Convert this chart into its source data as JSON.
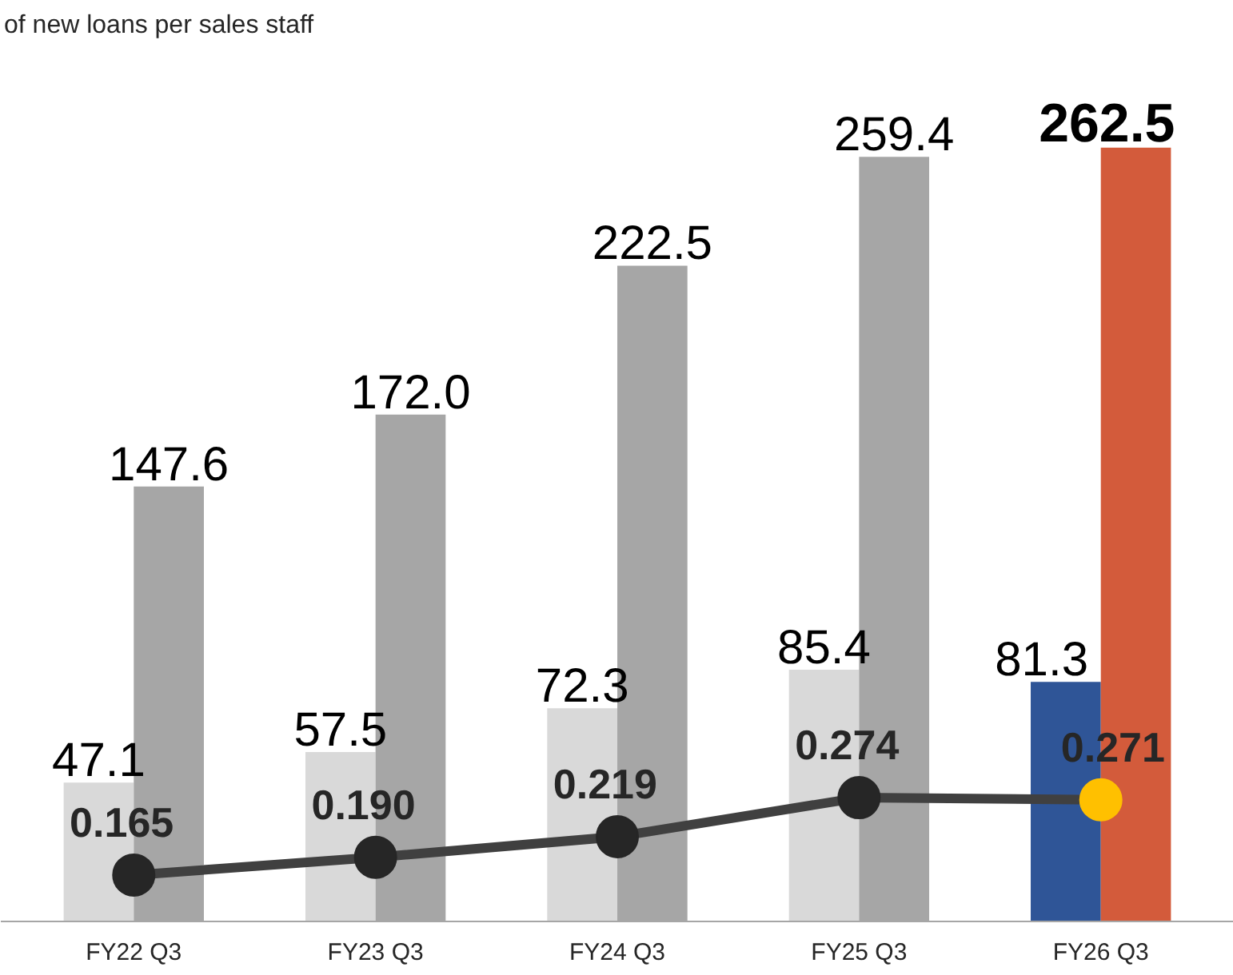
{
  "chart_data": {
    "type": "bar",
    "annotations": [
      "of new loans per sales staff"
    ],
    "categories": [
      "FY22 Q3",
      "FY23 Q3",
      "FY24 Q3",
      "FY25 Q3",
      "FY26 Q3"
    ],
    "series": [
      {
        "colors": [
          "#d9d9d9",
          "#d9d9d9",
          "#d9d9d9",
          "#d9d9d9",
          "#2f5597"
        ],
        "values": [
          47.1,
          57.5,
          72.3,
          85.4,
          81.3
        ],
        "value_labels": [
          "47.1",
          "57.5",
          "72.3",
          "85.4",
          "81.3"
        ]
      },
      {
        "colors": [
          "#a6a6a6",
          "#a6a6a6",
          "#a6a6a6",
          "#a6a6a6",
          "#d35b3b"
        ],
        "values": [
          147.6,
          172.0,
          222.5,
          259.4,
          262.5
        ],
        "value_labels": [
          "147.6",
          "172.0",
          "222.5",
          "259.4",
          "262.5"
        ]
      },
      {
        "type": "line",
        "axis": "y2",
        "color": "#404040",
        "colors": [
          "#262626",
          "#262626",
          "#262626",
          "#262626",
          "#ffc000"
        ],
        "values": [
          0.165,
          0.19,
          0.219,
          0.274,
          0.271
        ],
        "value_labels": [
          "0.165",
          "0.190",
          "0.219",
          "0.274",
          "0.271"
        ]
      }
    ],
    "marker": "circle"
  }
}
